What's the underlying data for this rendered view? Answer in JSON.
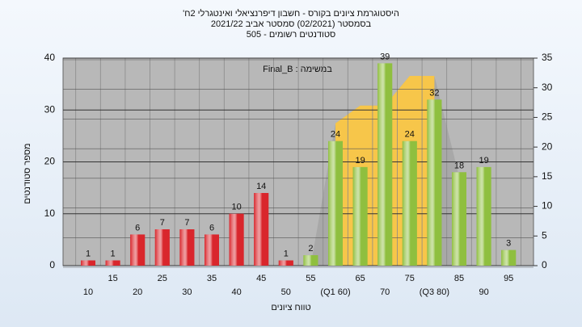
{
  "chart_data": {
    "type": "bar",
    "title": [
      "'היסטוגרמת ציונים בקורס - חשבון דיפרנציאלי ואינטגרלי 2ח",
      "בסמסטר (02/2021) סמסטר אביב 2021/22",
      "סטודנטים רשומים - 505"
    ],
    "annotation": "Final_B : במשימה",
    "y_label": "מספר סטודנטים",
    "x_label": "טווח ציונים",
    "categories": [
      "10",
      "15",
      "20",
      "25",
      "30",
      "35",
      "40",
      "45",
      "50",
      "55",
      "(Q1 60)",
      "65",
      "70",
      "75",
      "(Q3 80)",
      "85",
      "90",
      "95"
    ],
    "values": [
      1,
      1,
      6,
      7,
      7,
      6,
      10,
      14,
      1,
      2,
      24,
      19,
      39,
      24,
      32,
      18,
      19,
      3
    ],
    "colors": [
      "#d9262c",
      "#d9262c",
      "#d9262c",
      "#d9262c",
      "#d9262c",
      "#d9262c",
      "#d9262c",
      "#d9262c",
      "#d9262c",
      "#8fbf3f",
      "#8fbf3f",
      "#8fbf3f",
      "#8fbf3f",
      "#8fbf3f",
      "#8fbf3f",
      "#8fbf3f",
      "#8fbf3f",
      "#8fbf3f"
    ],
    "areas": [
      {
        "axis": "y2",
        "color": "#a8a8a8",
        "values": [
          null,
          null,
          null,
          null,
          null,
          null,
          null,
          null,
          null,
          0,
          24,
          27,
          27,
          32,
          32,
          15,
          null,
          null
        ]
      },
      {
        "axis": "y2",
        "color": "#f7c64a",
        "values": [
          null,
          null,
          null,
          null,
          null,
          null,
          null,
          null,
          null,
          null,
          24,
          27,
          27,
          32,
          32,
          null,
          null,
          null
        ]
      }
    ],
    "ylim": [
      0,
      40
    ],
    "yticks": [
      0,
      10,
      20,
      30,
      40
    ],
    "y2lim": [
      0,
      35
    ],
    "y2ticks": [
      0,
      5,
      10,
      15,
      20,
      25,
      30,
      35
    ],
    "grid": true
  }
}
